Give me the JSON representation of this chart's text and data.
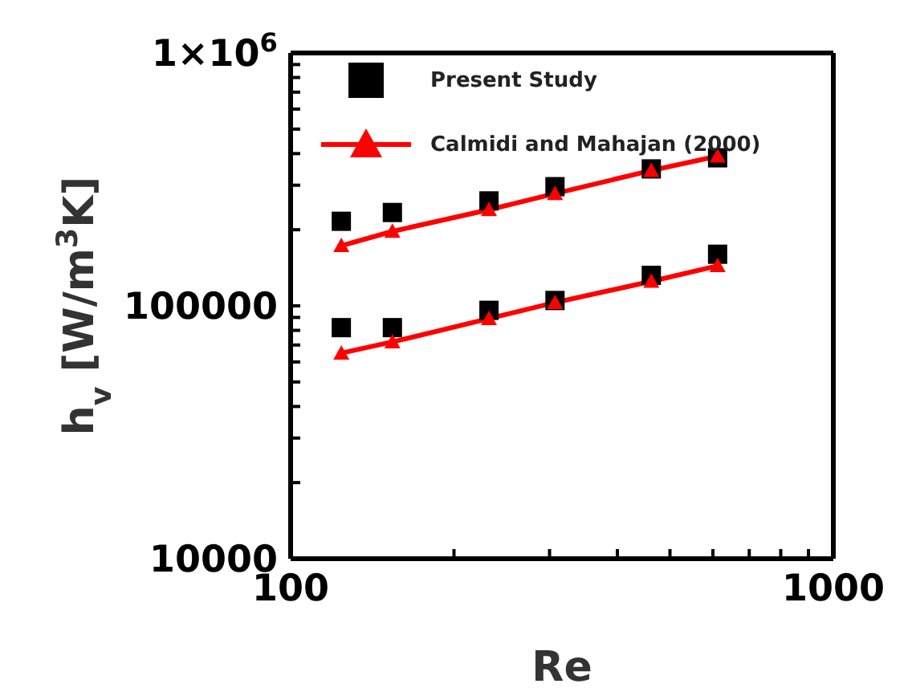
{
  "chart_data": {
    "type": "scatter",
    "xlabel": "Re",
    "ylabel": "h$_{v}$ [W/m$^{3}$K]",
    "log": "xy",
    "legend": "top left",
    "xlim": [
      100,
      1000
    ],
    "ylim": [
      10000,
      1000000
    ],
    "xticks": [
      100,
      {
        "value": 200,
        "label": null
      },
      {
        "value": 300,
        "label": null
      },
      {
        "value": 400,
        "label": null
      },
      {
        "value": 500,
        "label": null
      },
      {
        "value": 600,
        "label": null
      },
      {
        "value": 700,
        "label": null
      },
      {
        "value": 800,
        "label": null
      },
      {
        "value": 900,
        "label": null
      },
      1000
    ],
    "yticks": [
      10000,
      {
        "value": 20000,
        "label": null
      },
      {
        "value": 30000,
        "label": null
      },
      {
        "value": 40000,
        "label": null
      },
      {
        "value": 50000,
        "label": null
      },
      {
        "value": 60000,
        "label": null
      },
      {
        "value": 70000,
        "label": null
      },
      {
        "value": 80000,
        "label": null
      },
      {
        "value": 90000,
        "label": null
      },
      100000,
      {
        "value": 200000,
        "label": null
      },
      {
        "value": 300000,
        "label": null
      },
      {
        "value": 400000,
        "label": null
      },
      {
        "value": 500000,
        "label": null
      },
      {
        "value": 600000,
        "label": null
      },
      {
        "value": 700000,
        "label": null
      },
      {
        "value": 800000,
        "label": null
      },
      {
        "value": 900000,
        "label": null
      },
      {
        "value": 1000000,
        "label": "1×10$^{6}$"
      }
    ],
    "x": [
      124,
      154,
      232,
      307,
      462,
      612
    ],
    "series": [
      {
        "name": "Present Study",
        "marker": "square",
        "color": "#000000",
        "values": [
          216000,
          234000,
          260000,
          296000,
          348000,
          385000
        ]
      },
      {
        "marker": "square",
        "color": "#000000",
        "values": [
          82000,
          82000,
          96000,
          105000,
          132000,
          160000
        ]
      },
      {
        "name": "Calmidi and Mahajan (2000)",
        "type": "line",
        "marker": "triangle",
        "line_style": "solid",
        "color": "#ff0000",
        "values": [
          173000,
          197000,
          240000,
          278000,
          343000,
          391000
        ]
      },
      {
        "type": "line",
        "marker": "triangle",
        "line_style": "solid",
        "color": "#ff0000",
        "values": [
          65000,
          72000,
          89000,
          103000,
          125000,
          144000
        ]
      }
    ]
  }
}
